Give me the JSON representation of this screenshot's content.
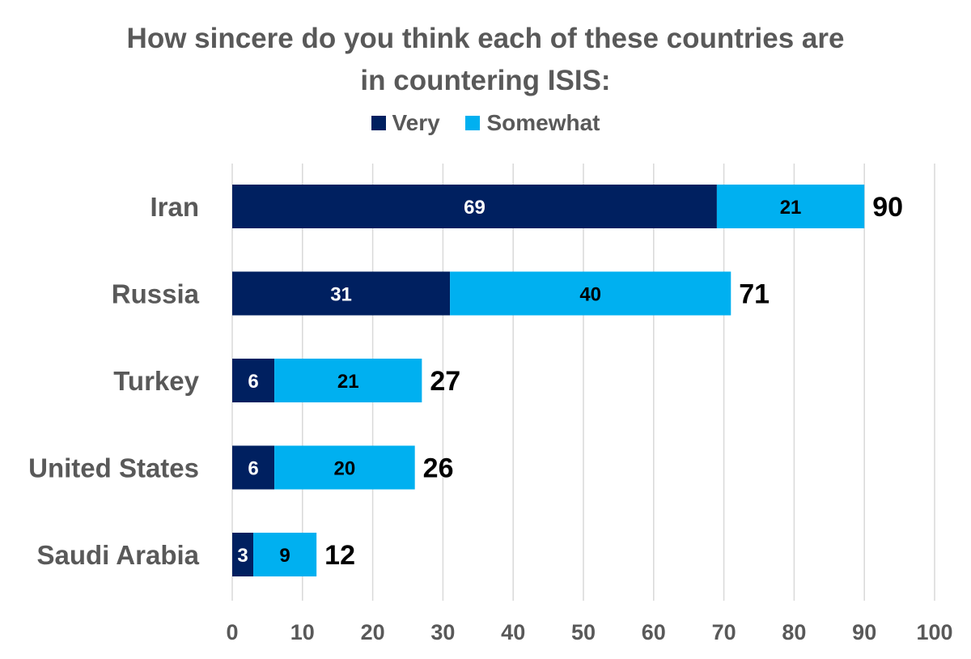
{
  "colors": {
    "very": "#002060",
    "somewhat": "#00B0F0",
    "grid": "#d9d9d9",
    "text": "#595959"
  },
  "chart_data": {
    "type": "bar",
    "orientation": "horizontal",
    "stacked": true,
    "title_lines": [
      "How sincere do you think each of these countries are",
      "in countering ISIS:"
    ],
    "legend_position": "top",
    "categories": [
      "Iran",
      "Russia",
      "Turkey",
      "United States",
      "Saudi Arabia"
    ],
    "series": [
      {
        "name": "Very",
        "color": "#002060",
        "label_color": "#ffffff",
        "values": [
          69,
          31,
          6,
          6,
          3
        ]
      },
      {
        "name": "Somewhat",
        "color": "#00B0F0",
        "label_color": "#000000",
        "values": [
          21,
          40,
          21,
          20,
          9
        ]
      }
    ],
    "totals": [
      90,
      71,
      27,
      26,
      12
    ],
    "xlim": [
      0,
      100
    ],
    "xticks": [
      "0",
      "10",
      "20",
      "30",
      "40",
      "50",
      "60",
      "70",
      "80",
      "90",
      "100"
    ],
    "grid": "vertical"
  }
}
